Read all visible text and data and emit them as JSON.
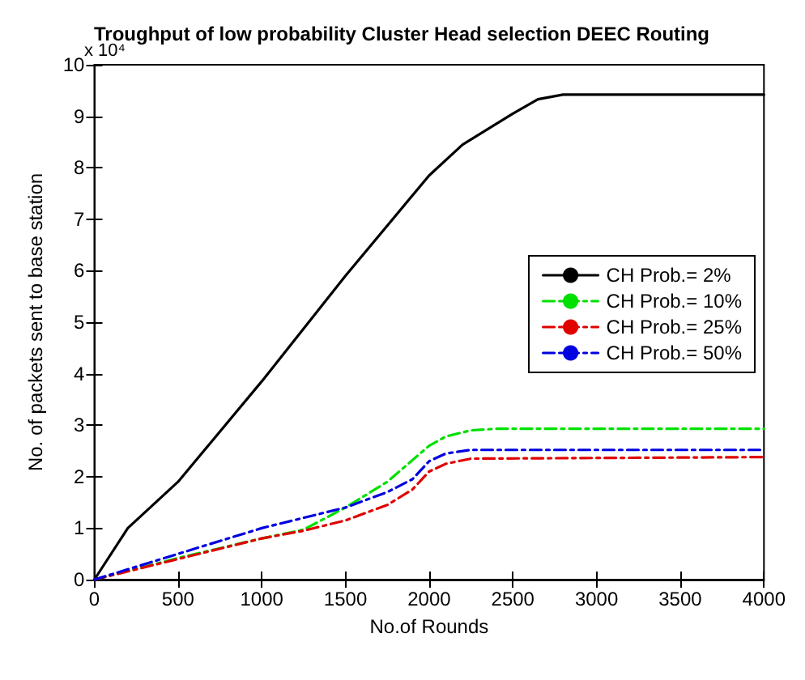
{
  "chart_data": {
    "type": "line",
    "title": "Troughput of low probability Cluster Head selection DEEC Routing",
    "xlabel": "No.of Rounds",
    "ylabel": "No. of packets sent to base station",
    "annotations": [
      "x 10⁴"
    ],
    "xlim": [
      0,
      4000
    ],
    "xticks": [
      0,
      500,
      1000,
      1500,
      2000,
      2500,
      3000,
      3500,
      4000
    ],
    "ylim": [
      0,
      10
    ],
    "yticks": [
      0,
      1,
      2,
      3,
      4,
      5,
      6,
      7,
      8,
      9,
      10
    ],
    "grid": false,
    "legend": "right",
    "marker": "none",
    "series": [
      {
        "name": "CH Prob.= 2%",
        "color": "#000000",
        "line_style": "solid",
        "x": [
          0,
          200,
          500,
          1000,
          1500,
          2000,
          2200,
          2500,
          2650,
          2800,
          4000
        ],
        "values": [
          0,
          1.0,
          1.9,
          3.85,
          5.9,
          7.85,
          8.45,
          9.05,
          9.33,
          9.42,
          9.42
        ]
      },
      {
        "name": "CH Prob.= 10%",
        "color": "#00e000",
        "line_style": "dashed",
        "x": [
          0,
          500,
          1000,
          1250,
          1500,
          1750,
          2000,
          2100,
          2250,
          2400,
          4000
        ],
        "values": [
          0,
          0.42,
          0.8,
          0.97,
          1.4,
          1.9,
          2.6,
          2.78,
          2.9,
          2.93,
          2.93
        ]
      },
      {
        "name": "CH Prob.= 25%",
        "color": "#e00000",
        "line_style": "dashed",
        "x": [
          0,
          500,
          1000,
          1250,
          1500,
          1750,
          1900,
          2000,
          2100,
          2250,
          4000
        ],
        "values": [
          0,
          0.4,
          0.8,
          0.95,
          1.15,
          1.45,
          1.75,
          2.1,
          2.25,
          2.35,
          2.38
        ]
      },
      {
        "name": "CH Prob.= 50%",
        "color": "#0000e0",
        "line_style": "dashed",
        "x": [
          0,
          500,
          1000,
          1250,
          1500,
          1750,
          1900,
          2000,
          2100,
          2250,
          4000
        ],
        "values": [
          0,
          0.5,
          1.0,
          1.2,
          1.4,
          1.7,
          1.95,
          2.3,
          2.45,
          2.52,
          2.52
        ]
      }
    ]
  }
}
